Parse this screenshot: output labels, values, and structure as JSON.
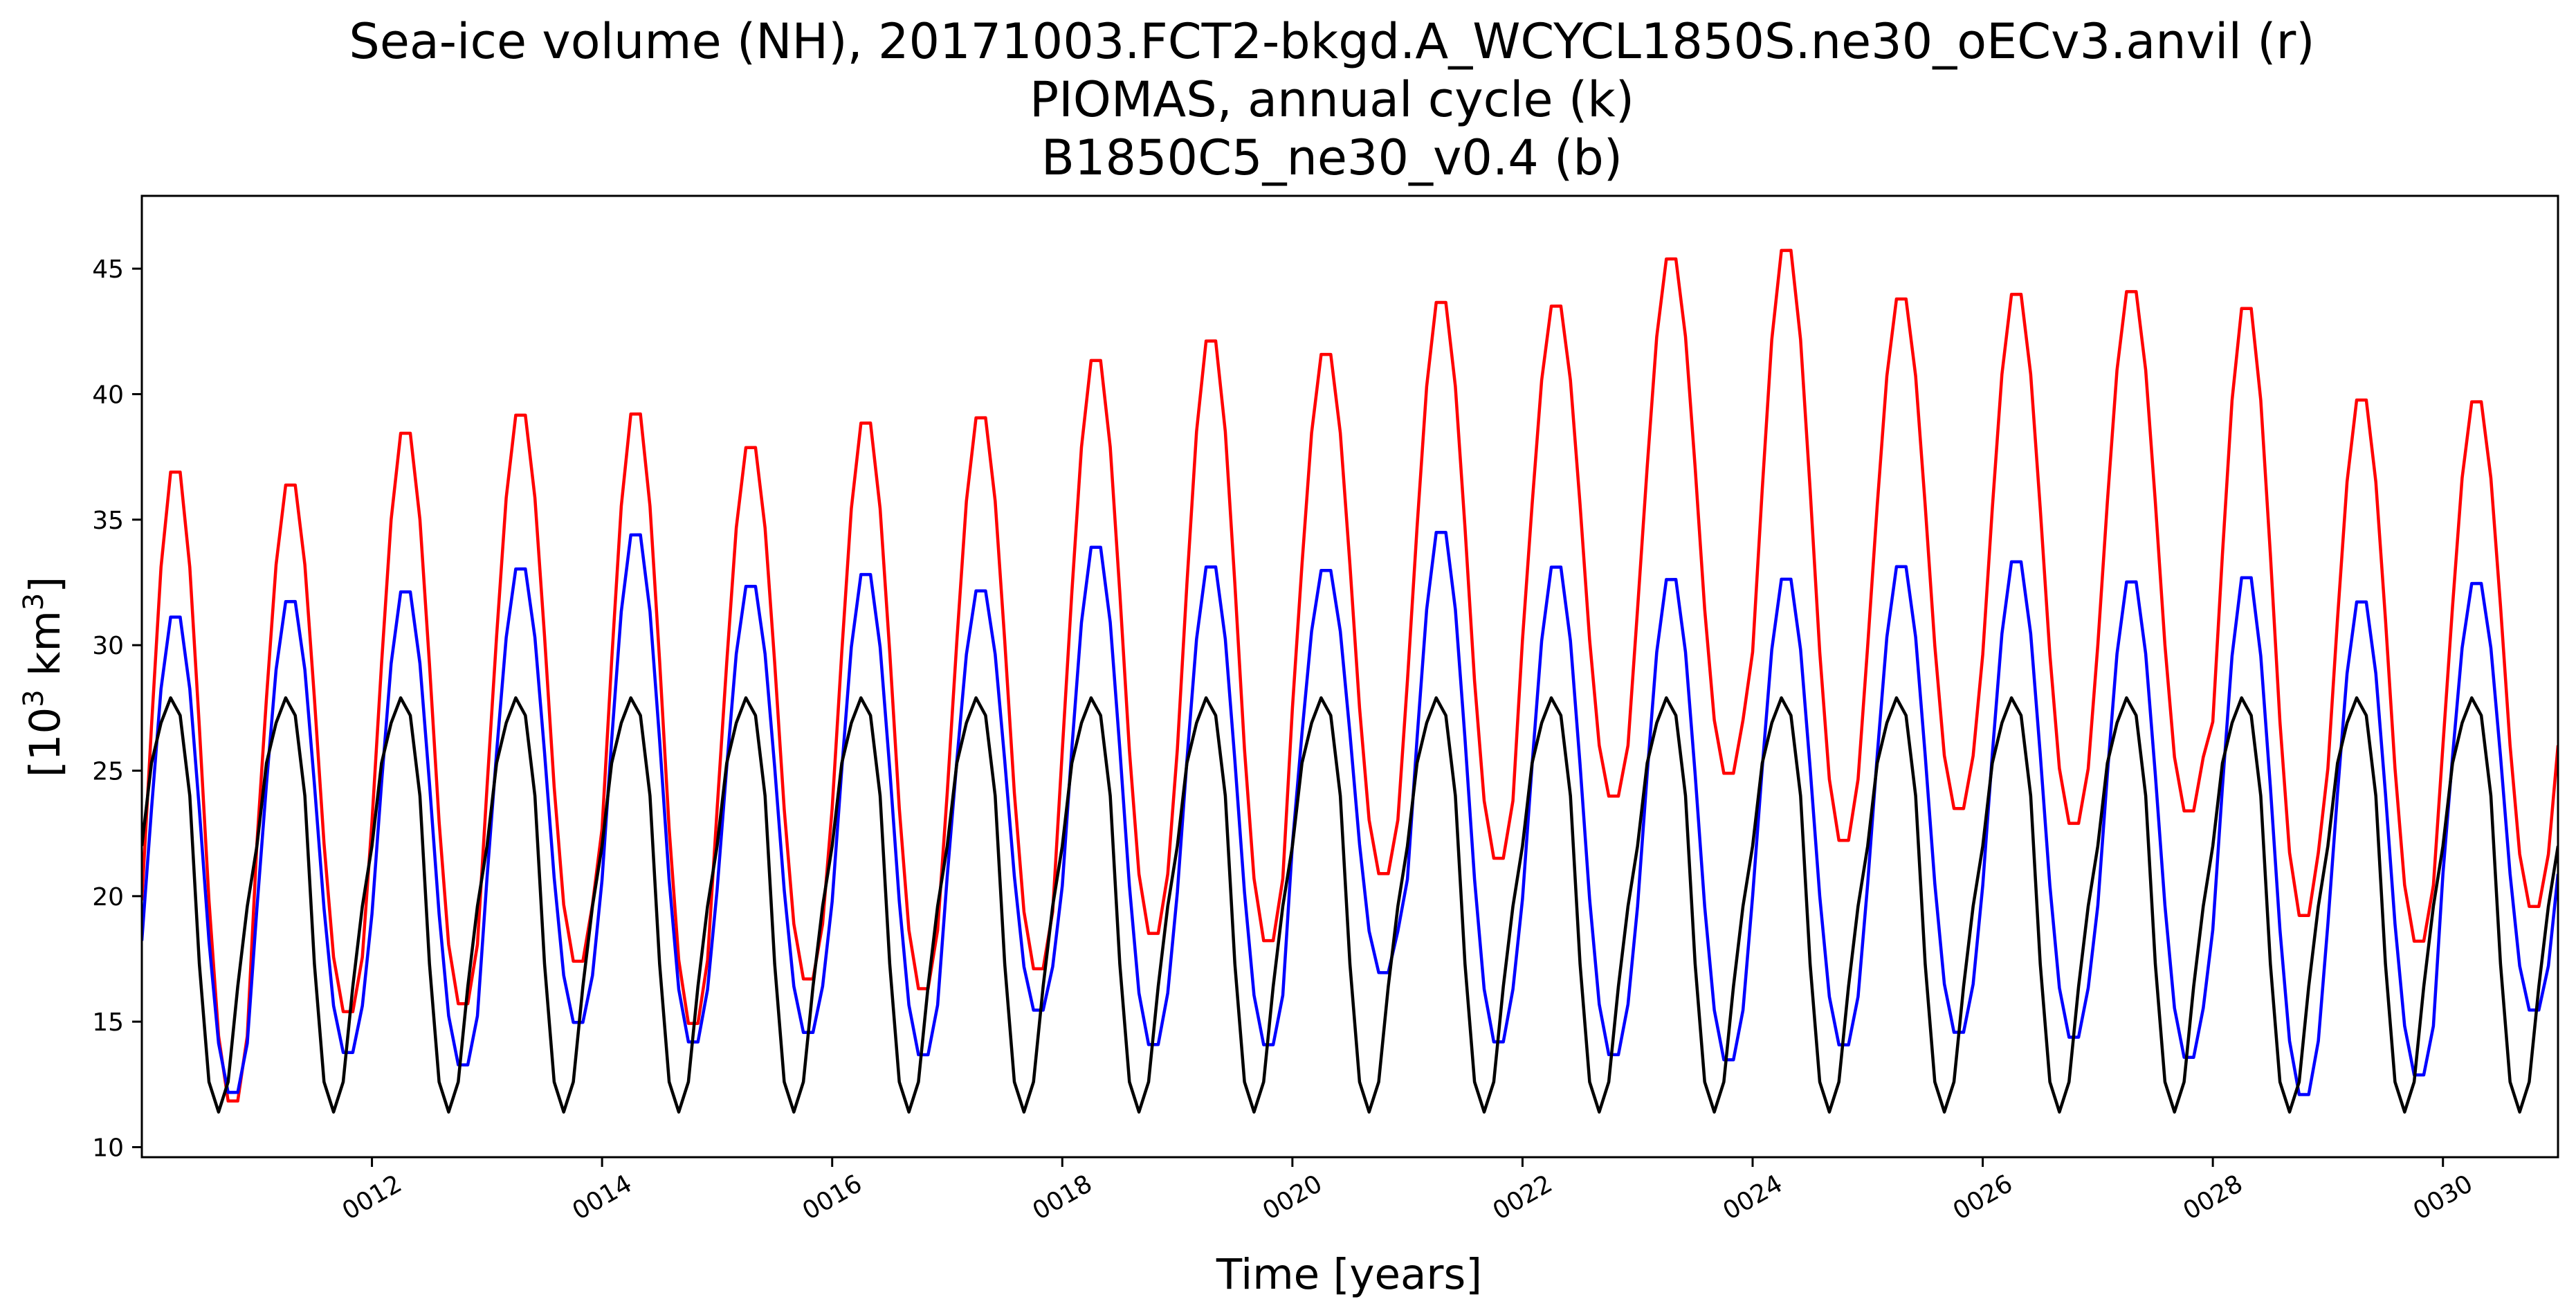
{
  "chart_data": {
    "type": "line",
    "title": [
      "Sea-ice volume (NH), 20171003.FCT2-bkgd.A_WCYCL1850S.ne30_oECv3.anvil (r)",
      "PIOMAS, annual cycle (k)",
      "B1850C5_ne30_v0.4 (b)"
    ],
    "xlabel": "Time [years]",
    "ylabel_base": "[10",
    "ylabel_sup1": "3",
    "ylabel_unit": " km",
    "ylabel_sup2": "3",
    "ylabel_end": "]",
    "xlim": [
      10,
      31
    ],
    "ylim": [
      9.6,
      47.9
    ],
    "xticks": [
      {
        "value": 12,
        "label": "0012"
      },
      {
        "value": 14,
        "label": "0014"
      },
      {
        "value": 16,
        "label": "0016"
      },
      {
        "value": 18,
        "label": "0018"
      },
      {
        "value": 20,
        "label": "0020"
      },
      {
        "value": 22,
        "label": "0022"
      },
      {
        "value": 24,
        "label": "0024"
      },
      {
        "value": 26,
        "label": "0026"
      },
      {
        "value": 28,
        "label": "0028"
      },
      {
        "value": 30,
        "label": "0030"
      }
    ],
    "yticks": [
      10,
      15,
      20,
      25,
      30,
      35,
      40,
      45
    ],
    "grid": false,
    "legend": "none",
    "monthly_cycle_phase": 0.2917,
    "series": [
      {
        "color": "#ff0000",
        "seasonal_max": [
          37.4,
          36.8,
          38.9,
          39.6,
          39.7,
          38.3,
          39.3,
          39.5,
          41.8,
          42.6,
          42.0,
          44.1,
          43.9,
          45.8,
          46.2,
          44.2,
          44.4,
          44.5,
          43.9,
          40.2,
          40.1
        ],
        "seasonal_min": [
          11.6,
          15.2,
          15.5,
          17.2,
          14.7,
          16.5,
          16.1,
          16.9,
          18.3,
          18.0,
          20.7,
          21.3,
          23.8,
          24.7,
          22.0,
          23.3,
          22.7,
          23.2,
          19.0,
          18.0,
          19.4
        ]
      },
      {
        "color": "#0000ff",
        "seasonal_max": [
          31.5,
          32.1,
          32.5,
          33.4,
          34.8,
          32.7,
          33.2,
          32.5,
          34.3,
          33.5,
          33.3,
          34.9,
          33.5,
          33.0,
          33.0,
          33.5,
          33.7,
          32.9,
          33.1,
          32.1,
          32.8
        ],
        "seasonal_min": [
          12.0,
          13.6,
          13.1,
          14.8,
          14.0,
          14.4,
          13.5,
          15.3,
          13.9,
          13.9,
          16.8,
          14.0,
          13.5,
          13.3,
          13.9,
          14.4,
          14.2,
          13.4,
          11.9,
          12.7,
          15.3
        ]
      },
      {
        "color": "#000000",
        "climatology": [
          22.0,
          25.3,
          26.9,
          27.9,
          27.2,
          24.0,
          17.3,
          12.6,
          11.4,
          12.6,
          16.4,
          19.6
        ],
        "cycles": 21
      }
    ]
  }
}
